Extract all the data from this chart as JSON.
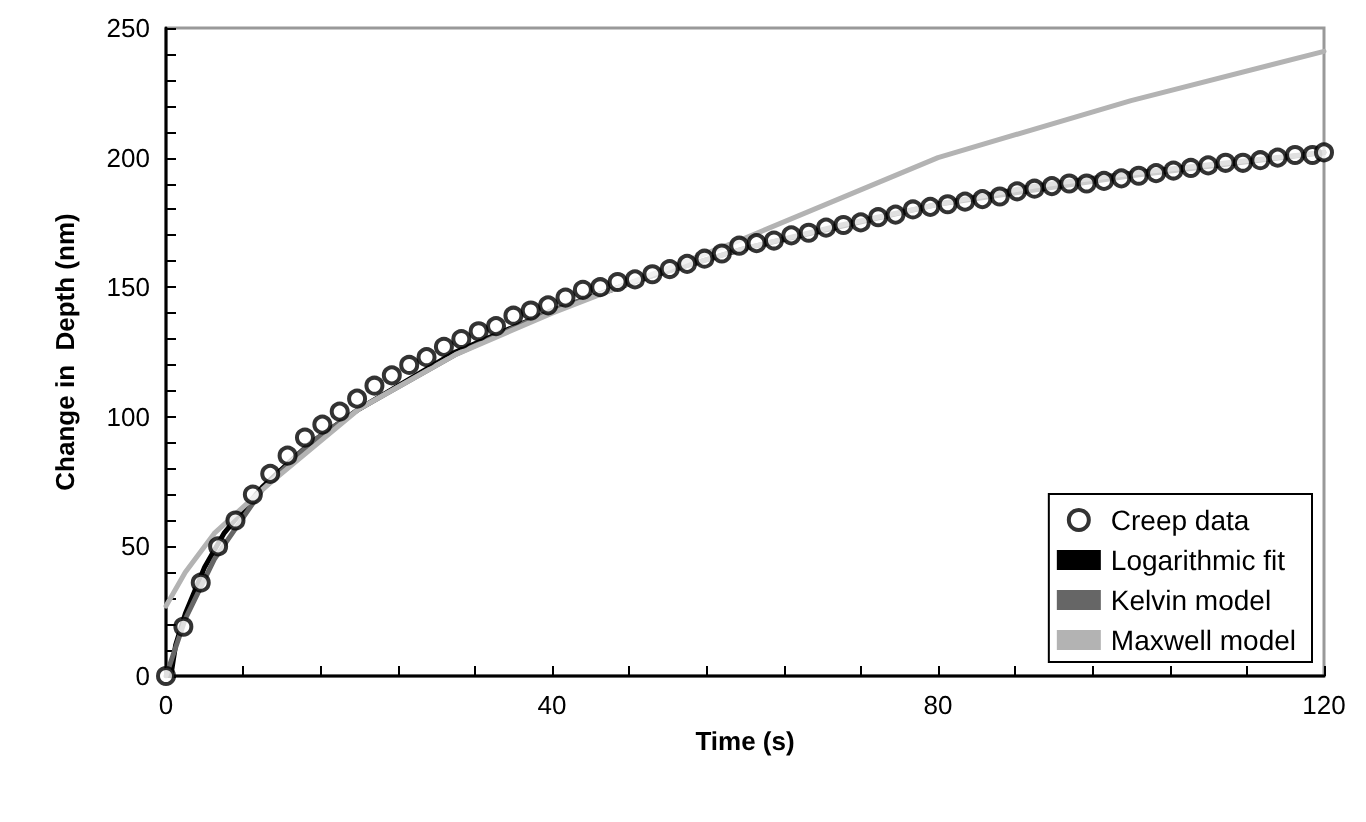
{
  "chart_data": {
    "type": "line",
    "xlabel": "Time (s)",
    "ylabel": "Change in  Depth (nm)",
    "xlim": [
      0,
      120
    ],
    "xticks": [
      0,
      {
        "value": 8,
        "label": null
      },
      {
        "value": 16,
        "label": null
      },
      {
        "value": 24,
        "label": null
      },
      {
        "value": 32,
        "label": null
      },
      40,
      {
        "value": 48,
        "label": null
      },
      {
        "value": 56,
        "label": null
      },
      {
        "value": 64,
        "label": null
      },
      {
        "value": 72,
        "label": null
      },
      80,
      {
        "value": 88,
        "label": null
      },
      {
        "value": 96,
        "label": null
      },
      {
        "value": 104,
        "label": null
      },
      {
        "value": 112,
        "label": null
      },
      120
    ],
    "ylim": [
      0,
      250
    ],
    "yticks": [
      0,
      {
        "value": 10,
        "label": null
      },
      {
        "value": 20,
        "label": null
      },
      {
        "value": 30,
        "label": null
      },
      {
        "value": 40,
        "label": null
      },
      50,
      {
        "value": 60,
        "label": null
      },
      {
        "value": 70,
        "label": null
      },
      {
        "value": 80,
        "label": null
      },
      {
        "value": 90,
        "label": null
      },
      100,
      {
        "value": 110,
        "label": null
      },
      {
        "value": 120,
        "label": null
      },
      {
        "value": 130,
        "label": null
      },
      {
        "value": 140,
        "label": null
      },
      150,
      {
        "value": 160,
        "label": null
      },
      {
        "value": 170,
        "label": null
      },
      {
        "value": 180,
        "label": null
      },
      {
        "value": 190,
        "label": null
      },
      200,
      {
        "value": 210,
        "label": null
      },
      {
        "value": 220,
        "label": null
      },
      {
        "value": 230,
        "label": null
      },
      {
        "value": 240,
        "label": null
      },
      250
    ],
    "grid": false,
    "legend": "bottom right",
    "line_style": "solid",
    "series": [
      {
        "name": "Creep data",
        "type": "scatter",
        "marker": "circle",
        "color": "#000000",
        "x": [
          0,
          1.8,
          3.6,
          5.4,
          7.2,
          9,
          10.8,
          12.6,
          14.4,
          16.2,
          18,
          19.8,
          21.6,
          23.4,
          25.2,
          27,
          28.8,
          30.6,
          32.4,
          34.2,
          36,
          37.8,
          39.6,
          41.4,
          43.2,
          45,
          46.8,
          48.6,
          50.4,
          52.2,
          54,
          55.8,
          57.6,
          59.4,
          61.2,
          63,
          64.8,
          66.6,
          68.4,
          70.2,
          72,
          73.8,
          75.6,
          77.4,
          79.2,
          81,
          82.8,
          84.6,
          86.4,
          88.2,
          90,
          91.8,
          93.6,
          95.4,
          97.2,
          99,
          100.8,
          102.6,
          104.4,
          106.2,
          108,
          109.8,
          111.6,
          113.4,
          115.2,
          117,
          118.8,
          120
        ],
        "values": [
          0,
          19,
          36,
          50,
          60,
          70,
          78,
          85,
          92,
          97,
          102,
          107,
          112,
          116,
          120,
          123,
          127,
          130,
          133,
          135,
          139,
          141,
          143,
          146,
          149,
          150,
          152,
          153,
          155,
          157,
          159,
          161,
          163,
          166,
          167,
          168,
          170,
          171,
          173,
          174,
          175,
          177,
          178,
          180,
          181,
          182,
          183,
          184,
          185,
          187,
          188,
          189,
          190,
          190,
          191,
          192,
          193,
          194,
          195,
          196,
          197,
          198,
          198,
          199,
          200,
          201,
          201,
          202
        ]
      },
      {
        "name": "Logarithmic fit",
        "color": "#000000",
        "x": [
          0.5,
          1,
          2,
          4,
          6,
          10,
          15,
          20,
          30,
          40,
          50,
          60,
          80,
          100,
          120
        ],
        "values": [
          0,
          12,
          24,
          42,
          55,
          73,
          90,
          103,
          125,
          141,
          154,
          165,
          182,
          193,
          202
        ]
      },
      {
        "name": "Kelvin model",
        "color": "#666666",
        "x": [
          0,
          2,
          5,
          10,
          15,
          20,
          30,
          40,
          50,
          60,
          70,
          80,
          90,
          100,
          110,
          120
        ],
        "values": [
          0,
          22,
          45,
          72,
          90,
          103,
          124,
          141,
          154,
          165,
          174,
          182,
          189,
          194,
          198,
          202
        ]
      },
      {
        "name": "Maxwell model",
        "color": "#b3b3b3",
        "x": [
          0,
          2,
          5,
          10,
          20,
          30,
          40,
          59.4,
          80,
          100,
          120
        ],
        "values": [
          27,
          40,
          55,
          72,
          103,
          124,
          140,
          168,
          200,
          222,
          241
        ]
      }
    ]
  }
}
